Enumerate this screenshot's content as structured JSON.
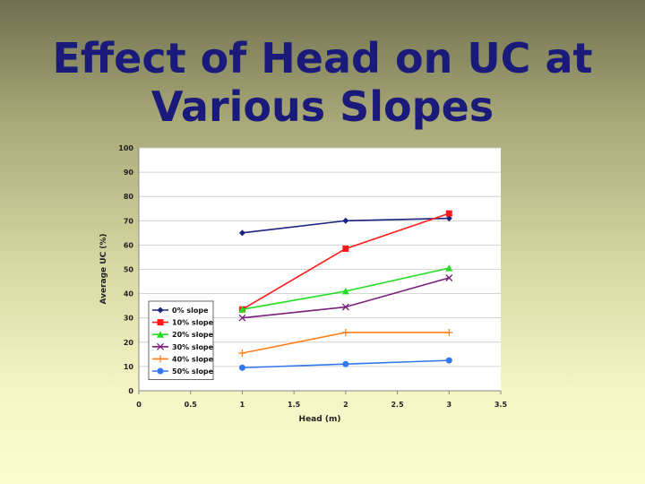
{
  "slide": {
    "title_line1": "Effect of Head on UC at",
    "title_line2": "Various Slopes"
  },
  "chart_data": {
    "type": "line",
    "xlabel": "Head (m)",
    "ylabel": "Average UC (%)",
    "xlim": [
      0,
      3.5
    ],
    "ylim": [
      0,
      100
    ],
    "x_ticks": [
      "0",
      "0.5",
      "1",
      "1.5",
      "2",
      "2.5",
      "3",
      "3.5"
    ],
    "y_ticks": [
      "0",
      "10",
      "20",
      "30",
      "40",
      "50",
      "60",
      "70",
      "80",
      "90",
      "100"
    ],
    "grid": "horizontal",
    "legend_position": "bottom-left",
    "x": [
      1,
      2,
      3
    ],
    "series": [
      {
        "name": "0% slope",
        "values": [
          65,
          70,
          71
        ],
        "color": "#1a237e",
        "marker": "diamond"
      },
      {
        "name": "10% slope",
        "values": [
          33.5,
          58.5,
          73
        ],
        "color": "#ff1a1a",
        "marker": "square"
      },
      {
        "name": "20% slope",
        "values": [
          33.5,
          41,
          50.5
        ],
        "color": "#22dd22",
        "marker": "triangle"
      },
      {
        "name": "30% slope",
        "values": [
          30,
          34.5,
          46.5
        ],
        "color": "#7a1f7a",
        "marker": "x"
      },
      {
        "name": "40% slope",
        "values": [
          15.5,
          24,
          24
        ],
        "color": "#ff7f1a",
        "marker": "plus"
      },
      {
        "name": "50% slope",
        "values": [
          9.5,
          11,
          12.5
        ],
        "color": "#3377ee",
        "marker": "circle"
      }
    ]
  }
}
